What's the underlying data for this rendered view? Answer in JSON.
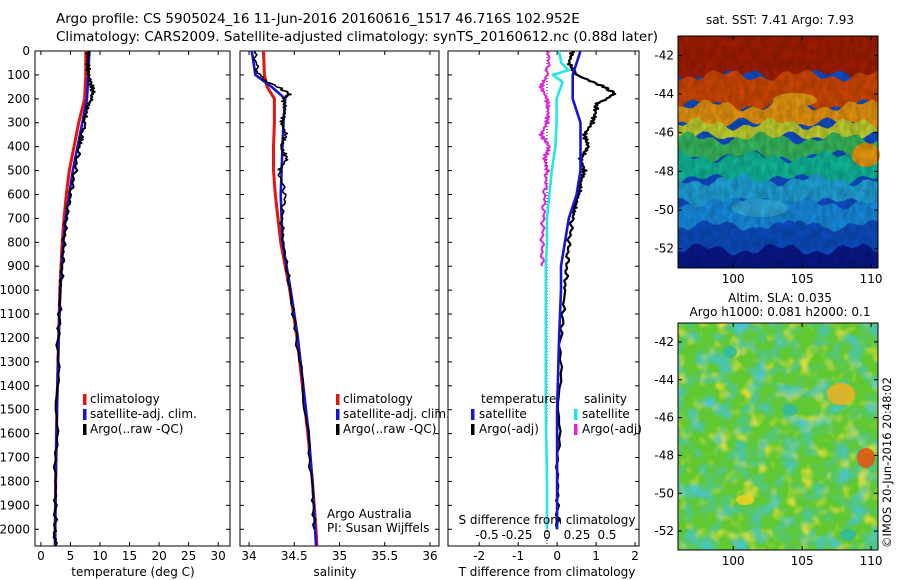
{
  "header": {
    "line1": "Argo profile: CS 5905024_16 11-Jun-2016 20160616_1517 46.716S 102.952E",
    "line2": "Climatology: CARS2009. Satellite-adjusted climatology: synTS_20160612.nc (0.88d later)"
  },
  "colors": {
    "climatology": "#e8120f",
    "satellite": "#1414d8",
    "argo": "#000000",
    "salinity_satellite": "#20e8e8",
    "salinity_argo": "#e020e0",
    "map_sea": "#c9cbd6"
  },
  "chart_data": [
    {
      "type": "line",
      "xlabel": "temperature (deg C)",
      "xlim": [
        -1,
        32
      ],
      "ylim": [
        2070,
        0
      ],
      "xticks": [
        "0",
        "5",
        "10",
        "15",
        "20",
        "25",
        "30"
      ],
      "yticks": [
        "0",
        "100",
        "200",
        "300",
        "400",
        "500",
        "600",
        "700",
        "800",
        "900",
        "1000",
        "1100",
        "1200",
        "1300",
        "1400",
        "1500",
        "1600",
        "1700",
        "1800",
        "1900",
        "2000"
      ],
      "legend": [
        "climatology",
        "satellite-adj. clim.",
        "Argo(..raw -QC)"
      ],
      "series": [
        {
          "name": "climatology",
          "depth": [
            0,
            100,
            200,
            300,
            400,
            500,
            600,
            700,
            800,
            1000,
            1200,
            1500,
            1800,
            2000,
            2070
          ],
          "values": [
            7.6,
            7.6,
            7.4,
            6.4,
            5.6,
            4.8,
            4.3,
            3.9,
            3.6,
            3.2,
            3.0,
            2.7,
            2.5,
            2.4,
            2.4
          ]
        },
        {
          "name": "satellite-adj. clim.",
          "depth": [
            0,
            100,
            200,
            300,
            400,
            500,
            600,
            700,
            800,
            1000,
            1200,
            1500,
            1800,
            2000,
            2070
          ],
          "values": [
            8.2,
            8.0,
            7.8,
            7.0,
            6.2,
            5.4,
            4.8,
            4.2,
            3.8,
            3.3,
            3.0,
            2.7,
            2.5,
            2.4,
            2.4
          ]
        },
        {
          "name": "Argo(..raw -QC)",
          "depth": [
            0,
            50,
            100,
            150,
            180,
            220,
            280,
            350,
            400,
            500,
            600,
            700,
            800,
            900,
            1000,
            1200,
            1500,
            1800,
            2000,
            2070
          ],
          "values": [
            8.0,
            7.9,
            8.1,
            8.6,
            8.9,
            8.0,
            7.5,
            7.0,
            6.5,
            5.8,
            5.0,
            4.3,
            3.9,
            3.6,
            3.3,
            3.0,
            2.7,
            2.5,
            2.4,
            2.4
          ]
        }
      ],
      "annotations": []
    },
    {
      "type": "line",
      "xlabel": "salinity",
      "xlim": [
        33.9,
        36.1
      ],
      "ylim": [
        2070,
        0
      ],
      "xticks": [
        "34",
        "34.5",
        "35",
        "35.5",
        "36"
      ],
      "legend": [
        "climatology",
        "satellite-adj. clim.",
        "Argo(..raw -QC)"
      ],
      "series": [
        {
          "name": "climatology",
          "depth": [
            0,
            100,
            150,
            200,
            300,
            400,
            500,
            600,
            800,
            1000,
            1200,
            1400,
            1600,
            1800,
            2000,
            2070
          ],
          "values": [
            34.16,
            34.17,
            34.2,
            34.28,
            34.28,
            34.27,
            34.27,
            34.29,
            34.35,
            34.45,
            34.53,
            34.59,
            34.65,
            34.7,
            34.74,
            34.75
          ]
        },
        {
          "name": "satellite-adj. clim.",
          "depth": [
            0,
            100,
            150,
            200,
            300,
            400,
            500,
            600,
            800,
            1000,
            1200,
            1400,
            1600,
            1800,
            2000,
            2070
          ],
          "values": [
            34.03,
            34.07,
            34.25,
            34.4,
            34.38,
            34.37,
            34.36,
            34.35,
            34.37,
            34.46,
            34.54,
            34.6,
            34.66,
            34.7,
            34.73,
            34.74
          ]
        },
        {
          "name": "Argo(..raw -QC)",
          "depth": [
            0,
            80,
            120,
            150,
            180,
            200,
            250,
            300,
            350,
            400,
            450,
            500,
            600,
            700,
            800,
            1000,
            1200,
            1500,
            1800,
            2000
          ],
          "values": [
            34.06,
            34.09,
            34.15,
            34.32,
            34.45,
            34.38,
            34.4,
            34.36,
            34.41,
            34.35,
            34.42,
            34.33,
            34.4,
            34.36,
            34.38,
            34.45,
            34.53,
            34.62,
            34.7,
            34.72
          ]
        }
      ],
      "annotations": [
        "Argo Australia",
        "PI: Susan Wijffels"
      ]
    },
    {
      "type": "line",
      "xlabel": "T difference from climatology",
      "xlim": [
        -2.8,
        2.1
      ],
      "ylim": [
        2070,
        0
      ],
      "xticks": [
        "-2",
        "-1",
        "0",
        "1",
        "2"
      ],
      "secondary_axis_label": "S difference from climatology",
      "secondary_xticks": [
        "-0.5",
        "-0.25",
        "0",
        "0.25",
        "0.5"
      ],
      "legend_groups": [
        {
          "title": "temperature",
          "items": [
            "satellite",
            "Argo(-adj)"
          ]
        },
        {
          "title": "salinity",
          "items": [
            "satellite",
            "Argo(-adj)"
          ]
        }
      ],
      "series": [
        {
          "name": "temperature satellite",
          "depth": [
            0,
            50,
            100,
            200,
            300,
            400,
            500,
            600,
            700,
            800,
            900,
            1000,
            1200,
            1500,
            1800,
            2000
          ],
          "values": [
            0.6,
            0.5,
            0.4,
            0.4,
            0.6,
            0.6,
            0.6,
            0.5,
            0.3,
            0.2,
            0.1,
            0.1,
            0.05,
            0.0,
            0.0,
            0.0
          ]
        },
        {
          "name": "temperature Argo(-adj)",
          "depth": [
            0,
            50,
            100,
            150,
            180,
            220,
            250,
            300,
            350,
            400,
            450,
            500,
            550,
            600,
            650,
            700,
            800,
            900,
            1000,
            1200,
            1500,
            1800,
            2000
          ],
          "values": [
            0.4,
            0.3,
            0.5,
            1.2,
            1.5,
            1.0,
            1.0,
            0.9,
            0.7,
            0.8,
            0.6,
            0.7,
            0.6,
            0.55,
            0.45,
            0.4,
            0.3,
            0.25,
            0.2,
            0.1,
            0.05,
            0.02,
            0.0
          ]
        },
        {
          "name": "salinity satellite",
          "depth": [
            0,
            50,
            80,
            100,
            130,
            200,
            300,
            400,
            500,
            600,
            700,
            800,
            900,
            1000,
            1200,
            1500,
            1800,
            2000
          ],
          "values": [
            0.1,
            0.12,
            0.18,
            0.05,
            0.13,
            0.08,
            0.08,
            0.07,
            0.04,
            0.02,
            0.0,
            0.0,
            -0.01,
            -0.01,
            -0.01,
            -0.01,
            0.0,
            0.0
          ]
        },
        {
          "name": "salinity Argo(-adj)",
          "depth": [
            0,
            100,
            150,
            200,
            250,
            300,
            350,
            400,
            450,
            500,
            600,
            700,
            800,
            900
          ],
          "values": [
            0.02,
            0.0,
            -0.05,
            0.0,
            0.01,
            0.0,
            -0.05,
            0.02,
            -0.02,
            0.0,
            -0.02,
            -0.03,
            -0.04,
            -0.04
          ]
        }
      ]
    },
    {
      "type": "heatmap",
      "title": "sat. SST: 7.41  Argo: 7.93",
      "xlim": [
        96,
        110.5
      ],
      "ylim": [
        -53,
        -41
      ],
      "xticks": [
        "100",
        "105",
        "110"
      ],
      "yticks": [
        "-42",
        "-44",
        "-46",
        "-48",
        "-50",
        "-52"
      ]
    },
    {
      "type": "heatmap",
      "title_lines": [
        "Altim. SLA: 0.035",
        "Argo h1000: 0.081  h2000: 0.1"
      ],
      "xlim": [
        96,
        110.5
      ],
      "ylim": [
        -53,
        -41
      ],
      "xticks": [
        "100",
        "105",
        "110"
      ],
      "yticks": [
        "-42",
        "-44",
        "-46",
        "-48",
        "-50",
        "-52"
      ]
    }
  ],
  "footer": {
    "credit": "©IMOS 20-Jun-2016 20:48:02"
  }
}
